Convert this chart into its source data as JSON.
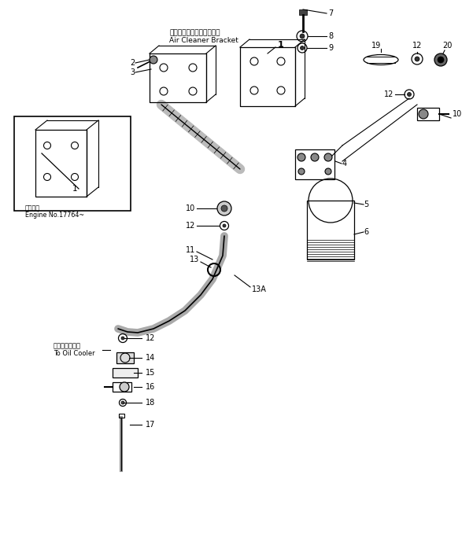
{
  "background_color": "#ffffff",
  "line_color": "#000000",
  "fig_width": 6.01,
  "fig_height": 6.79,
  "dpi": 100,
  "labels": {
    "top_bracket_jp": "エアークリーナブラケット",
    "top_bracket_en": "Air Cleaner Bracket",
    "inset_jp": "適用号機",
    "inset_en": "Engine No.17764~",
    "oil_cooler_jp": "オイルクーラへ",
    "oil_cooler_en": "To Oil Cooler"
  }
}
